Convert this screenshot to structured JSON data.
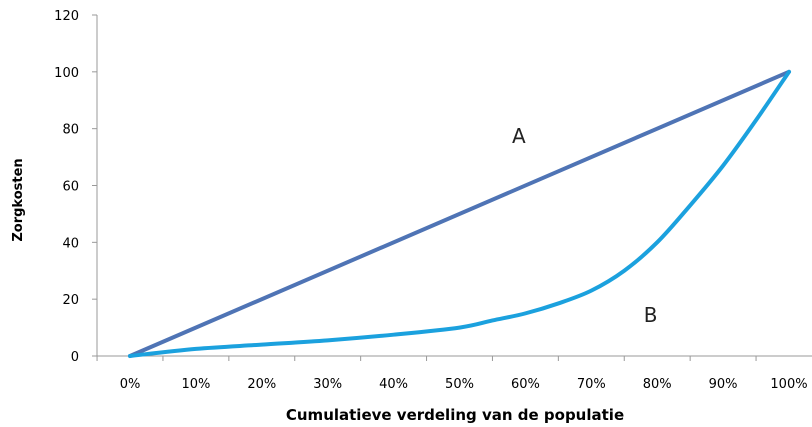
{
  "chart_data": {
    "type": "line",
    "xlabel": "Cumulatieve verdeling van de populatie",
    "ylabel": "Zorgkosten",
    "x_ticks": [
      "0%",
      "10%",
      "20%",
      "30%",
      "40%",
      "50%",
      "60%",
      "70%",
      "80%",
      "90%",
      "100%"
    ],
    "y_ticks": [
      "0",
      "20",
      "40",
      "60",
      "80",
      "100",
      "120"
    ],
    "xlim": [
      0,
      100
    ],
    "ylim": [
      0,
      120
    ],
    "grid": false,
    "series": [
      {
        "color": "#4f74b5",
        "x": [
          0,
          100
        ],
        "y": [
          0,
          100
        ]
      },
      {
        "color": "#1ba1de",
        "x": [
          0,
          10,
          20,
          30,
          40,
          50,
          55,
          60,
          65,
          70,
          75,
          80,
          85,
          90,
          95,
          100
        ],
        "y": [
          0,
          2.5,
          4,
          5.5,
          7.5,
          10,
          12.5,
          15,
          18.5,
          23,
          30,
          40,
          53,
          67,
          83,
          100
        ]
      }
    ],
    "annotations": [
      {
        "text": "A",
        "x": 59,
        "y": 75
      },
      {
        "text": "B",
        "x": 79,
        "y": 12
      }
    ]
  }
}
